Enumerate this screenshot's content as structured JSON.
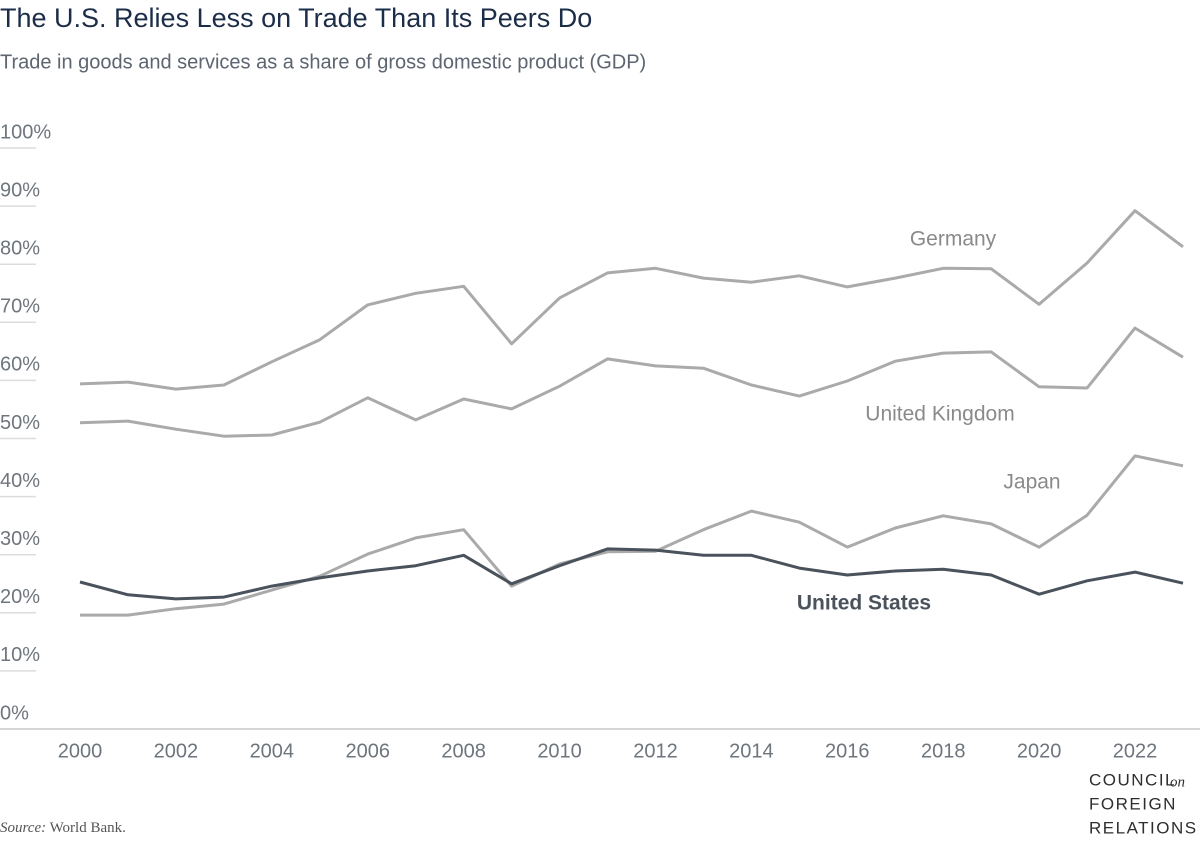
{
  "chart_data": {
    "type": "line",
    "title": "The U.S. Relies Less on Trade Than Its Peers Do",
    "subtitle": "Trade in goods and services as a share of gross domestic product (GDP)",
    "x": [
      2000,
      2001,
      2002,
      2003,
      2004,
      2005,
      2006,
      2007,
      2008,
      2009,
      2010,
      2011,
      2012,
      2013,
      2014,
      2015,
      2016,
      2017,
      2018,
      2019,
      2020,
      2021,
      2022,
      2023
    ],
    "xlim": [
      2000,
      2023
    ],
    "xticks": [
      2000,
      2002,
      2004,
      2006,
      2008,
      2010,
      2012,
      2014,
      2016,
      2018,
      2020,
      2022
    ],
    "ylim": [
      0,
      100
    ],
    "yticks": [
      {
        "value": 0,
        "label": "0%"
      },
      {
        "value": 10,
        "label": "10%"
      },
      {
        "value": 20,
        "label": "20%"
      },
      {
        "value": 30,
        "label": "30%"
      },
      {
        "value": 40,
        "label": "40%"
      },
      {
        "value": 50,
        "label": "50%"
      },
      {
        "value": 60,
        "label": "60%"
      },
      {
        "value": 70,
        "label": "70%"
      },
      {
        "value": 80,
        "label": "80%"
      },
      {
        "value": 90,
        "label": "90%"
      },
      {
        "value": 100,
        "label": "100%"
      }
    ],
    "series": [
      {
        "name": "Germany",
        "color": "#aaaaaa",
        "values": [
          59.4,
          59.7,
          58.5,
          59.2,
          63.2,
          67,
          73,
          75,
          76.2,
          66.3,
          74.2,
          78.5,
          79.3,
          77.6,
          76.9,
          78,
          76.1,
          77.6,
          79.3,
          79.2,
          73.1,
          80.2,
          89.2,
          83
        ]
      },
      {
        "name": "United Kingdom",
        "color": "#aaaaaa",
        "values": [
          52.7,
          53,
          51.6,
          50.4,
          50.6,
          52.8,
          57,
          53.2,
          56.8,
          55.1,
          59,
          63.7,
          62.5,
          62.1,
          59.2,
          57.3,
          59.9,
          63.3,
          64.7,
          64.9,
          58.9,
          58.7,
          69,
          64
        ]
      },
      {
        "name": "Japan",
        "color": "#aaaaaa",
        "values": [
          19.6,
          19.6,
          20.7,
          21.5,
          23.9,
          26.3,
          30.1,
          32.9,
          34.3,
          24.6,
          28.4,
          30.5,
          30.6,
          34.3,
          37.5,
          35.6,
          31.3,
          34.6,
          36.7,
          35.3,
          31.3,
          36.8,
          47,
          45.3
        ]
      },
      {
        "name": "United States",
        "color": "#4a525c",
        "values": [
          25.3,
          23.1,
          22.4,
          22.7,
          24.6,
          26,
          27.2,
          28.1,
          29.9,
          25,
          28.1,
          31,
          30.8,
          29.9,
          29.9,
          27.7,
          26.5,
          27.2,
          27.5,
          26.5,
          23.2,
          25.5,
          27,
          25.1
        ]
      }
    ],
    "source_label": "Source:",
    "source": "World Bank.",
    "logo": [
      "COUNCIL",
      "on",
      "FOREIGN",
      "RELATIONS"
    ]
  }
}
